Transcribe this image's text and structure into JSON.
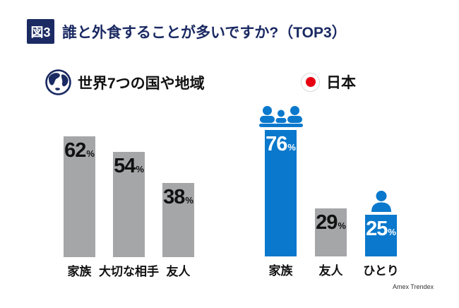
{
  "header": {
    "badge_label": "図3",
    "title": "誰と外食することが多いですか?（TOP3）"
  },
  "sections": {
    "world": {
      "heading": "世界7つの国や地域",
      "icon": "globe-icon"
    },
    "japan": {
      "heading": "日本",
      "icon": "japan-flag-icon"
    }
  },
  "credit": "Amex Trendex",
  "colors": {
    "navy": "#1b2a63",
    "bar_blue": "#0a78cc",
    "bar_gray": "#a5a6a8",
    "flag_red": "#e60012",
    "text_black": "#111111",
    "value_white": "#ffffff"
  },
  "chart_data": [
    {
      "type": "bar",
      "title": "世界7つの国や地域",
      "categories": [
        "家族",
        "大切な相手",
        "友人"
      ],
      "values": [
        62,
        54,
        38
      ],
      "unit": "%",
      "ylim": [
        0,
        100
      ],
      "grid": false,
      "bar_color": "#a5a6a8",
      "value_label_color": "#111111",
      "icons": [
        null,
        null,
        null
      ]
    },
    {
      "type": "bar",
      "title": "日本",
      "categories": [
        "家族",
        "友人",
        "ひとり"
      ],
      "values": [
        76,
        29,
        25
      ],
      "unit": "%",
      "ylim": [
        0,
        100
      ],
      "grid": false,
      "bar_colors": [
        "#0a78cc",
        "#a5a6a8",
        "#0a78cc"
      ],
      "value_label_colors": [
        "#ffffff",
        "#111111",
        "#ffffff"
      ],
      "icons": [
        "family-icon",
        null,
        "person-icon"
      ]
    }
  ]
}
